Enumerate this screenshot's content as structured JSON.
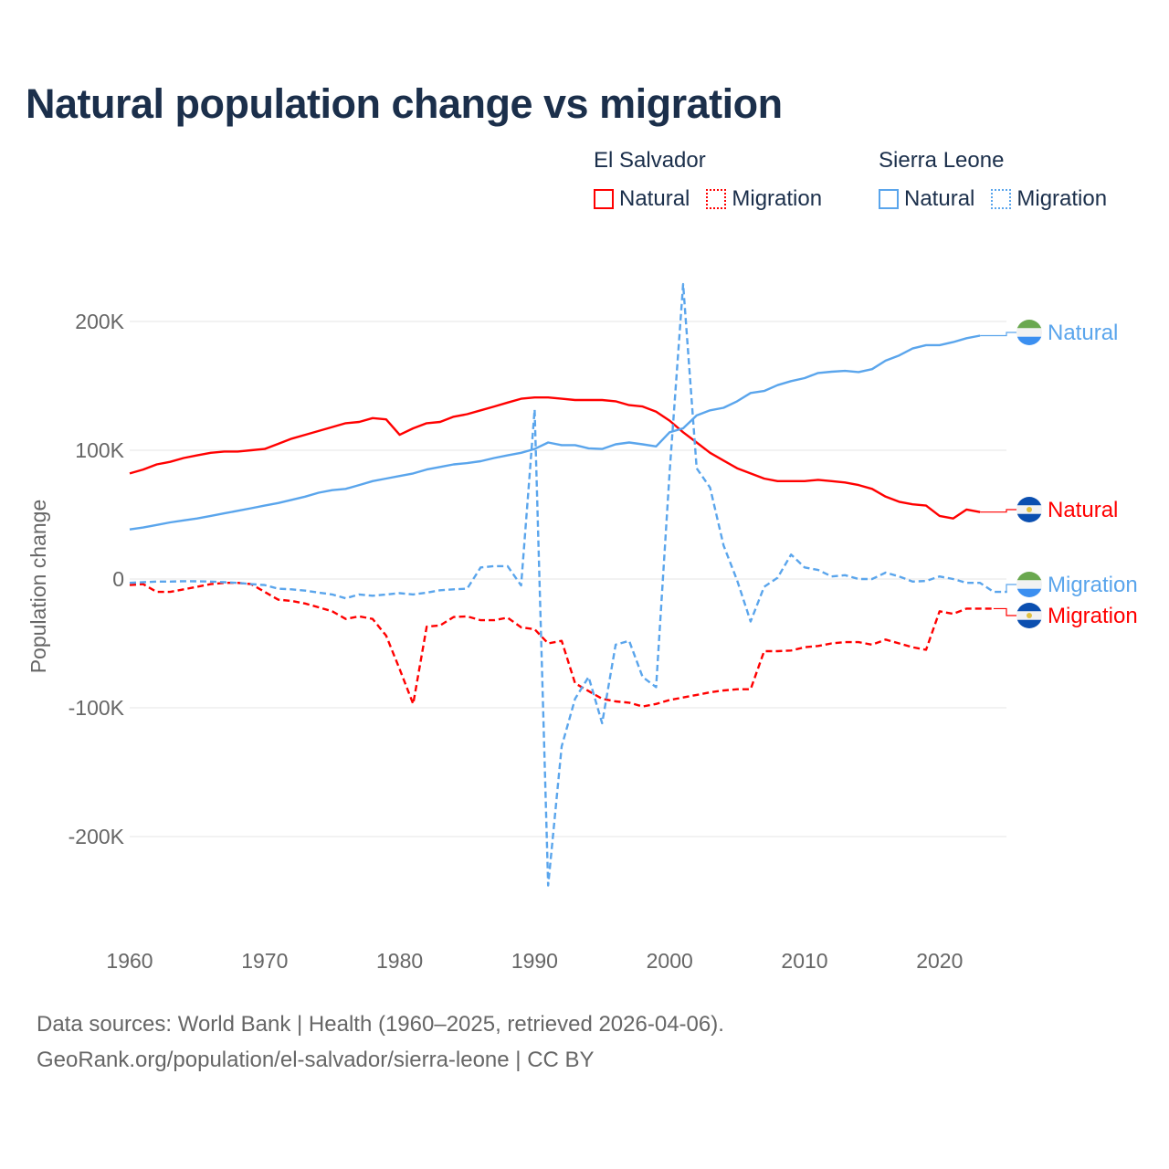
{
  "title": "Natural population change vs migration",
  "legend": {
    "groups": [
      {
        "country": "El Salvador",
        "natural": "Natural",
        "migration": "Migration",
        "color": "#ff0000"
      },
      {
        "country": "Sierra Leone",
        "natural": "Natural",
        "migration": "Migration",
        "color": "#5aa5ec"
      }
    ]
  },
  "footer": {
    "line1": "Data sources: World Bank | Health (1960–2025, retrieved 2026-04-06).",
    "line2": "GeoRank.org/population/el-salvador/sierra-leone | CC BY"
  },
  "chart_data": {
    "type": "line",
    "title": "Natural population change vs migration",
    "xlabel": "",
    "ylabel": "Population change",
    "xlim": [
      1960,
      2025
    ],
    "ylim": [
      -260000,
      240000
    ],
    "x_ticks": [
      1960,
      1970,
      1980,
      1990,
      2000,
      2010,
      2020
    ],
    "y_ticks": [
      {
        "v": 200000,
        "label": "200K"
      },
      {
        "v": 100000,
        "label": "100K"
      },
      {
        "v": 0,
        "label": "0"
      },
      {
        "v": -100000,
        "label": "-100K"
      },
      {
        "v": -200000,
        "label": "-200K"
      }
    ],
    "grid": true,
    "series": [
      {
        "name": "El Salvador Natural",
        "end_label": "Natural",
        "country": "El Salvador",
        "kind": "natural",
        "color": "#ff0000",
        "dashed": false,
        "start": 1960,
        "values_k": [
          82,
          85,
          89,
          91,
          94,
          96,
          98,
          99,
          99,
          100,
          101,
          105,
          109,
          112,
          115,
          118,
          121,
          122,
          125,
          124,
          112,
          117,
          121,
          122,
          126,
          128,
          131,
          134,
          137,
          140,
          141,
          141,
          140,
          139,
          139,
          139,
          138,
          135,
          134,
          130,
          123,
          114,
          106,
          98,
          92,
          86,
          82,
          78,
          76,
          76,
          76,
          77,
          76,
          75,
          73,
          70,
          64,
          60,
          58,
          57,
          49,
          47,
          54,
          52
        ]
      },
      {
        "name": "El Salvador Migration",
        "end_label": "Migration",
        "country": "El Salvador",
        "kind": "migration",
        "color": "#ff0000",
        "dashed": true,
        "start": 1960,
        "values_k": [
          -4.7,
          -4,
          -10,
          -10,
          -8,
          -6,
          -4,
          -3,
          -3,
          -4,
          -10,
          -16,
          -17,
          -19,
          -22,
          -25,
          -31,
          -29,
          -31,
          -44,
          -70,
          -97,
          -37,
          -36,
          -29.5,
          -29,
          -32,
          -32,
          -30,
          -37.5,
          -39,
          -50,
          -48,
          -81,
          -87,
          -93,
          -95,
          -96,
          -99,
          -97,
          -94,
          -92,
          -90,
          -88,
          -86.5,
          -85.6,
          -85.6,
          -56,
          -56,
          -55.5,
          -53,
          -52,
          -50,
          -49,
          -49,
          -51,
          -47,
          -50,
          -53,
          -55,
          -25,
          -27,
          -23,
          -23,
          -23
        ]
      },
      {
        "name": "Sierra Leone Natural",
        "end_label": "Natural",
        "country": "Sierra Leone",
        "kind": "natural",
        "color": "#5aa5ec",
        "dashed": false,
        "start": 1960,
        "values_k": [
          38.5,
          40,
          42,
          44,
          45.5,
          47,
          49,
          51,
          53,
          55,
          57,
          59,
          61.5,
          64,
          67,
          69,
          70,
          73,
          76,
          78,
          80,
          82,
          85,
          87,
          89,
          90,
          91.5,
          94,
          96,
          98,
          101,
          106,
          104,
          104,
          101.5,
          101,
          104.6,
          106,
          104.6,
          103,
          114,
          117,
          127,
          131,
          133,
          138,
          144.5,
          146,
          150.6,
          153.7,
          156,
          160,
          161,
          161.6,
          160.7,
          163,
          169.6,
          173.6,
          179,
          181.6,
          181.6,
          184,
          187,
          189
        ]
      },
      {
        "name": "Sierra Leone Migration",
        "end_label": "Migration",
        "country": "Sierra Leone",
        "kind": "migration",
        "color": "#5aa5ec",
        "dashed": true,
        "start": 1960,
        "values_k": [
          -3,
          -2.5,
          -2,
          -2,
          -1.7,
          -1.8,
          -2,
          -2.5,
          -3,
          -4,
          -4.7,
          -7.5,
          -8,
          -9,
          -10.6,
          -12,
          -15,
          -12,
          -13,
          -12,
          -11,
          -12,
          -10.6,
          -8.7,
          -8,
          -7.5,
          9,
          10,
          10,
          -5,
          131.6,
          -238,
          -130,
          -93,
          -76,
          -112,
          -51,
          -48,
          -76,
          -84,
          83,
          229,
          86,
          71,
          26,
          -1,
          -33,
          -6,
          1,
          19,
          9,
          7,
          2,
          3,
          0,
          0,
          5,
          2,
          -2,
          -1.5,
          2,
          0,
          -3,
          -3,
          -10,
          -10
        ]
      }
    ]
  }
}
